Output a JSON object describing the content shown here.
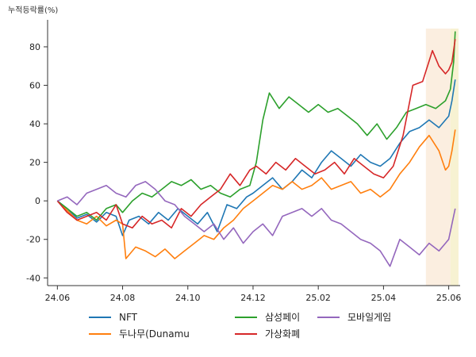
{
  "chart_data": {
    "type": "line",
    "ylabel": "누적등락률(%)",
    "ylim": [
      -44,
      94
    ],
    "xlim": [
      -0.3,
      12.35
    ],
    "grid": false,
    "legend_placement": "bottom-center",
    "y_ticks": [
      {
        "value": -40,
        "label": "-40"
      },
      {
        "value": -20,
        "label": "-20"
      },
      {
        "value": 0,
        "label": "0"
      },
      {
        "value": 20,
        "label": "20"
      },
      {
        "value": 40,
        "label": "40"
      },
      {
        "value": 60,
        "label": "60"
      },
      {
        "value": 80,
        "label": "80"
      }
    ],
    "x_ticks": [
      {
        "value": 0,
        "label": "24.06"
      },
      {
        "value": 2,
        "label": "24.08"
      },
      {
        "value": 4,
        "label": "24.10"
      },
      {
        "value": 6,
        "label": "24.12"
      },
      {
        "value": 8,
        "label": "25.02"
      },
      {
        "value": 10,
        "label": "25.04"
      },
      {
        "value": 12,
        "label": "25.06"
      }
    ],
    "highlights": [
      {
        "x0": 11.3,
        "x1": 12.05,
        "color": "#fbeee0"
      },
      {
        "x0": 12.05,
        "x1": 12.3,
        "color": "#f7f2d2"
      }
    ],
    "series": [
      {
        "name": "NFT",
        "color": "#1f77b4",
        "points": [
          [
            0,
            0
          ],
          [
            0.3,
            -4
          ],
          [
            0.6,
            -9
          ],
          [
            0.9,
            -7
          ],
          [
            1.2,
            -11
          ],
          [
            1.5,
            -6
          ],
          [
            1.8,
            -8
          ],
          [
            2.0,
            -18
          ],
          [
            2.2,
            -10
          ],
          [
            2.5,
            -8
          ],
          [
            2.8,
            -12
          ],
          [
            3.1,
            -6
          ],
          [
            3.4,
            -10
          ],
          [
            3.7,
            -4
          ],
          [
            4.0,
            -8
          ],
          [
            4.3,
            -12
          ],
          [
            4.6,
            -6
          ],
          [
            4.9,
            -16
          ],
          [
            5.2,
            -2
          ],
          [
            5.5,
            -4
          ],
          [
            5.8,
            2
          ],
          [
            6.0,
            4
          ],
          [
            6.3,
            8
          ],
          [
            6.6,
            12
          ],
          [
            6.9,
            6
          ],
          [
            7.2,
            10
          ],
          [
            7.5,
            16
          ],
          [
            7.8,
            12
          ],
          [
            8.1,
            20
          ],
          [
            8.4,
            26
          ],
          [
            8.7,
            22
          ],
          [
            9.0,
            18
          ],
          [
            9.3,
            24
          ],
          [
            9.6,
            20
          ],
          [
            9.9,
            18
          ],
          [
            10.2,
            22
          ],
          [
            10.5,
            30
          ],
          [
            10.8,
            36
          ],
          [
            11.1,
            38
          ],
          [
            11.4,
            42
          ],
          [
            11.7,
            38
          ],
          [
            12.0,
            44
          ],
          [
            12.1,
            52
          ],
          [
            12.2,
            63
          ]
        ]
      },
      {
        "name": "두나무(Dunamu",
        "color": "#ff7f0e",
        "points": [
          [
            0,
            0
          ],
          [
            0.3,
            -5
          ],
          [
            0.6,
            -10
          ],
          [
            0.9,
            -12
          ],
          [
            1.2,
            -8
          ],
          [
            1.5,
            -13
          ],
          [
            1.8,
            -10
          ],
          [
            2.0,
            -12
          ],
          [
            2.1,
            -30
          ],
          [
            2.4,
            -24
          ],
          [
            2.7,
            -26
          ],
          [
            3.0,
            -29
          ],
          [
            3.3,
            -25
          ],
          [
            3.6,
            -30
          ],
          [
            3.9,
            -26
          ],
          [
            4.2,
            -22
          ],
          [
            4.5,
            -18
          ],
          [
            4.8,
            -20
          ],
          [
            5.1,
            -14
          ],
          [
            5.4,
            -10
          ],
          [
            5.7,
            -4
          ],
          [
            6.0,
            0
          ],
          [
            6.3,
            4
          ],
          [
            6.6,
            8
          ],
          [
            6.9,
            6
          ],
          [
            7.2,
            10
          ],
          [
            7.5,
            6
          ],
          [
            7.8,
            8
          ],
          [
            8.1,
            12
          ],
          [
            8.4,
            6
          ],
          [
            8.7,
            8
          ],
          [
            9.0,
            10
          ],
          [
            9.3,
            4
          ],
          [
            9.6,
            6
          ],
          [
            9.9,
            2
          ],
          [
            10.2,
            6
          ],
          [
            10.5,
            14
          ],
          [
            10.8,
            20
          ],
          [
            11.1,
            28
          ],
          [
            11.4,
            34
          ],
          [
            11.7,
            26
          ],
          [
            11.9,
            16
          ],
          [
            12.0,
            18
          ],
          [
            12.1,
            26
          ],
          [
            12.2,
            37
          ]
        ]
      },
      {
        "name": "삼성페이",
        "color": "#2ca02c",
        "points": [
          [
            0,
            0
          ],
          [
            0.3,
            -4
          ],
          [
            0.6,
            -8
          ],
          [
            0.9,
            -6
          ],
          [
            1.2,
            -10
          ],
          [
            1.5,
            -4
          ],
          [
            1.8,
            -2
          ],
          [
            2.0,
            -6
          ],
          [
            2.3,
            0
          ],
          [
            2.6,
            4
          ],
          [
            2.9,
            2
          ],
          [
            3.2,
            6
          ],
          [
            3.5,
            10
          ],
          [
            3.8,
            8
          ],
          [
            4.1,
            11
          ],
          [
            4.4,
            6
          ],
          [
            4.7,
            8
          ],
          [
            5.0,
            4
          ],
          [
            5.3,
            2
          ],
          [
            5.6,
            6
          ],
          [
            5.9,
            8
          ],
          [
            6.1,
            20
          ],
          [
            6.3,
            42
          ],
          [
            6.5,
            56
          ],
          [
            6.8,
            48
          ],
          [
            7.1,
            54
          ],
          [
            7.4,
            50
          ],
          [
            7.7,
            46
          ],
          [
            8.0,
            50
          ],
          [
            8.3,
            46
          ],
          [
            8.6,
            48
          ],
          [
            8.9,
            44
          ],
          [
            9.2,
            40
          ],
          [
            9.5,
            34
          ],
          [
            9.8,
            40
          ],
          [
            10.1,
            32
          ],
          [
            10.4,
            38
          ],
          [
            10.7,
            46
          ],
          [
            11.0,
            48
          ],
          [
            11.3,
            50
          ],
          [
            11.6,
            48
          ],
          [
            11.9,
            52
          ],
          [
            12.05,
            58
          ],
          [
            12.15,
            72
          ],
          [
            12.2,
            88
          ]
        ]
      },
      {
        "name": "가상화폐",
        "color": "#d62728",
        "points": [
          [
            0,
            0
          ],
          [
            0.3,
            -6
          ],
          [
            0.6,
            -10
          ],
          [
            0.9,
            -8
          ],
          [
            1.2,
            -6
          ],
          [
            1.5,
            -10
          ],
          [
            1.8,
            -2
          ],
          [
            2.0,
            -12
          ],
          [
            2.3,
            -14
          ],
          [
            2.6,
            -8
          ],
          [
            2.9,
            -12
          ],
          [
            3.2,
            -10
          ],
          [
            3.5,
            -14
          ],
          [
            3.8,
            -4
          ],
          [
            4.1,
            -8
          ],
          [
            4.4,
            -2
          ],
          [
            4.7,
            2
          ],
          [
            5.0,
            6
          ],
          [
            5.3,
            14
          ],
          [
            5.6,
            8
          ],
          [
            5.9,
            16
          ],
          [
            6.1,
            18
          ],
          [
            6.4,
            14
          ],
          [
            6.7,
            20
          ],
          [
            7.0,
            16
          ],
          [
            7.3,
            22
          ],
          [
            7.6,
            18
          ],
          [
            7.9,
            14
          ],
          [
            8.2,
            16
          ],
          [
            8.5,
            20
          ],
          [
            8.8,
            14
          ],
          [
            9.1,
            22
          ],
          [
            9.4,
            18
          ],
          [
            9.7,
            14
          ],
          [
            10.0,
            12
          ],
          [
            10.3,
            18
          ],
          [
            10.6,
            34
          ],
          [
            10.9,
            60
          ],
          [
            11.2,
            62
          ],
          [
            11.5,
            78
          ],
          [
            11.7,
            70
          ],
          [
            11.9,
            66
          ],
          [
            12.0,
            68
          ],
          [
            12.1,
            72
          ],
          [
            12.2,
            84
          ]
        ]
      },
      {
        "name": "모바일게임",
        "color": "#9467bd",
        "points": [
          [
            0,
            0
          ],
          [
            0.3,
            2
          ],
          [
            0.6,
            -2
          ],
          [
            0.9,
            4
          ],
          [
            1.2,
            6
          ],
          [
            1.5,
            8
          ],
          [
            1.8,
            4
          ],
          [
            2.1,
            2
          ],
          [
            2.4,
            8
          ],
          [
            2.7,
            10
          ],
          [
            3.0,
            6
          ],
          [
            3.3,
            0
          ],
          [
            3.6,
            -2
          ],
          [
            3.9,
            -8
          ],
          [
            4.2,
            -12
          ],
          [
            4.5,
            -16
          ],
          [
            4.8,
            -12
          ],
          [
            5.1,
            -20
          ],
          [
            5.4,
            -14
          ],
          [
            5.7,
            -22
          ],
          [
            6.0,
            -16
          ],
          [
            6.3,
            -12
          ],
          [
            6.6,
            -18
          ],
          [
            6.9,
            -8
          ],
          [
            7.2,
            -6
          ],
          [
            7.5,
            -4
          ],
          [
            7.8,
            -8
          ],
          [
            8.1,
            -4
          ],
          [
            8.4,
            -10
          ],
          [
            8.7,
            -12
          ],
          [
            9.0,
            -16
          ],
          [
            9.3,
            -20
          ],
          [
            9.6,
            -22
          ],
          [
            9.9,
            -26
          ],
          [
            10.2,
            -34
          ],
          [
            10.5,
            -20
          ],
          [
            10.8,
            -24
          ],
          [
            11.1,
            -28
          ],
          [
            11.4,
            -22
          ],
          [
            11.7,
            -26
          ],
          [
            11.9,
            -22
          ],
          [
            12.0,
            -20
          ],
          [
            12.1,
            -12
          ],
          [
            12.2,
            -4
          ]
        ]
      }
    ]
  }
}
